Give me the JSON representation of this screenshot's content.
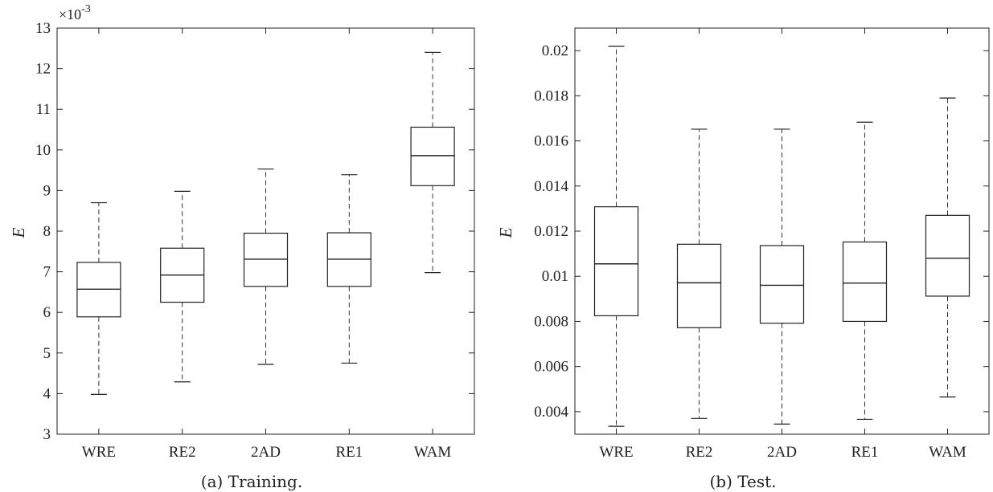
{
  "chart_data": [
    {
      "type": "box",
      "caption": "(a) Training.",
      "ylabel": "E",
      "y_multiplier_label": "×10",
      "y_multiplier_exp": "-3",
      "ylim": [
        3,
        13
      ],
      "yticks": [
        3,
        4,
        5,
        6,
        7,
        8,
        9,
        10,
        11,
        12,
        13
      ],
      "ytick_labels": [
        "3",
        "4",
        "5",
        "6",
        "7",
        "8",
        "9",
        "10",
        "11",
        "12",
        "13"
      ],
      "categories": [
        "WRE",
        "RE2",
        "2AD",
        "RE1",
        "WAM"
      ],
      "boxes": [
        {
          "min": 3.98,
          "q1": 5.89,
          "median": 6.57,
          "q3": 7.23,
          "max": 8.7
        },
        {
          "min": 4.29,
          "q1": 6.25,
          "median": 6.92,
          "q3": 7.58,
          "max": 8.98
        },
        {
          "min": 4.72,
          "q1": 6.64,
          "median": 7.31,
          "q3": 7.95,
          "max": 9.53
        },
        {
          "min": 4.75,
          "q1": 6.64,
          "median": 7.31,
          "q3": 7.96,
          "max": 9.39
        },
        {
          "min": 6.98,
          "q1": 9.12,
          "median": 9.86,
          "q3": 10.56,
          "max": 12.4
        }
      ]
    },
    {
      "type": "box",
      "caption": "(b) Test.",
      "ylabel": "E",
      "ylim": [
        0.003,
        0.021
      ],
      "yticks": [
        0.004,
        0.006,
        0.008,
        0.01,
        0.012,
        0.014,
        0.016,
        0.018,
        0.02
      ],
      "ytick_labels": [
        "0.004",
        "0.006",
        "0.008",
        "0.01",
        "0.012",
        "0.014",
        "0.016",
        "0.018",
        "0.02"
      ],
      "categories": [
        "WRE",
        "RE2",
        "2AD",
        "RE1",
        "WAM"
      ],
      "boxes": [
        {
          "min": 0.00335,
          "q1": 0.00825,
          "median": 0.01055,
          "q3": 0.01308,
          "max": 0.0202
        },
        {
          "min": 0.0037,
          "q1": 0.00772,
          "median": 0.00971,
          "q3": 0.01142,
          "max": 0.01652
        },
        {
          "min": 0.00345,
          "q1": 0.00792,
          "median": 0.0096,
          "q3": 0.01136,
          "max": 0.01652
        },
        {
          "min": 0.00366,
          "q1": 0.008,
          "median": 0.0097,
          "q3": 0.01152,
          "max": 0.01683
        },
        {
          "min": 0.00465,
          "q1": 0.00912,
          "median": 0.0108,
          "q3": 0.0127,
          "max": 0.0179
        }
      ]
    }
  ]
}
